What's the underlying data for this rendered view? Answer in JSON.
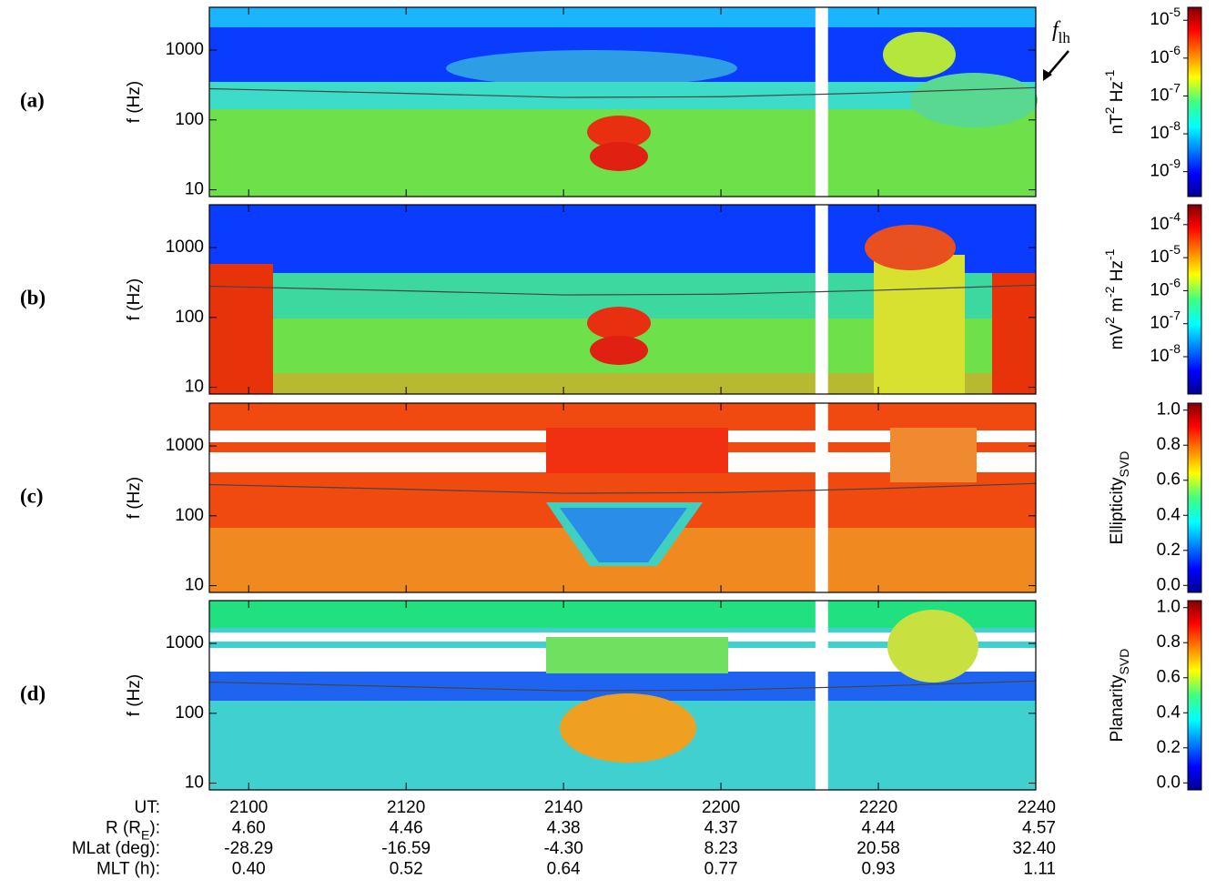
{
  "chart_data": [
    {
      "type": "spectrogram",
      "panel_label": "(a)",
      "y_label": "f (Hz)",
      "log_y": true,
      "ylim": [
        8,
        4100
      ],
      "yticks": [
        10,
        100,
        1000
      ],
      "xlim": [
        1255,
        1360
      ],
      "xticks": [
        {
          "value": 1260,
          "label": "2100"
        },
        {
          "value": 1280,
          "label": "2120"
        },
        {
          "value": 1300,
          "label": "2140"
        },
        {
          "value": 1320,
          "label": "2200"
        },
        {
          "value": 1340,
          "label": "2220"
        },
        {
          "value": 1360,
          "label": "2240"
        }
      ],
      "colormap": "jet",
      "log_c": true,
      "clim": [
        2.2e-10,
        2.2e-05
      ],
      "cticks": [
        {
          "value": 1e-05,
          "label": "10",
          "sup": "-5"
        },
        {
          "value": 1e-06,
          "label": "10",
          "sup": "-6"
        },
        {
          "value": 1e-07,
          "label": "10",
          "sup": "-7"
        },
        {
          "value": 1e-08,
          "label": "10",
          "sup": "-8"
        },
        {
          "value": 1e-09,
          "label": "10",
          "sup": "-9"
        }
      ],
      "colorbar_label": [
        {
          "text": "nT"
        },
        {
          "text": "2",
          "sup": true
        },
        {
          "text": " Hz"
        },
        {
          "text": "-1",
          "sup": true
        }
      ],
      "data_gap": [
        1332,
        1333.6
      ],
      "annotation": [
        {
          "text": "f",
          "italic": true
        },
        {
          "text": "lh",
          "sub": true
        }
      ]
    },
    {
      "type": "spectrogram",
      "panel_label": "(b)",
      "y_label": "f (Hz)",
      "log_y": true,
      "ylim": [
        8,
        4100
      ],
      "yticks": [
        10,
        100,
        1000
      ],
      "xlim": [
        1255,
        1360
      ],
      "xticks": [
        {
          "value": 1260,
          "label": "2100"
        },
        {
          "value": 1280,
          "label": "2120"
        },
        {
          "value": 1300,
          "label": "2140"
        },
        {
          "value": 1320,
          "label": "2200"
        },
        {
          "value": 1340,
          "label": "2220"
        },
        {
          "value": 1360,
          "label": "2240"
        }
      ],
      "colormap": "jet",
      "log_c": true,
      "clim": [
        7.4e-10,
        0.0004
      ],
      "cticks": [
        {
          "value": 0.0001,
          "label": "10",
          "sup": "-4"
        },
        {
          "value": 1e-05,
          "label": "10",
          "sup": "-5"
        },
        {
          "value": 1e-06,
          "label": "10",
          "sup": "-6"
        },
        {
          "value": 1e-07,
          "label": "10",
          "sup": "-7"
        },
        {
          "value": 1e-08,
          "label": "10",
          "sup": "-8"
        }
      ],
      "colorbar_label": [
        {
          "text": "mV"
        },
        {
          "text": "2",
          "sup": true
        },
        {
          "text": " m"
        },
        {
          "text": "-2",
          "sup": true
        },
        {
          "text": " Hz"
        },
        {
          "text": "-1",
          "sup": true
        }
      ],
      "data_gap": [
        1332,
        1333.6
      ]
    },
    {
      "type": "spectrogram",
      "panel_label": "(c)",
      "y_label": "f (Hz)",
      "log_y": true,
      "ylim": [
        8,
        4100
      ],
      "yticks": [
        10,
        100,
        1000
      ],
      "xlim": [
        1255,
        1360
      ],
      "xticks": [
        {
          "value": 1260,
          "label": "2100"
        },
        {
          "value": 1280,
          "label": "2120"
        },
        {
          "value": 1300,
          "label": "2140"
        },
        {
          "value": 1320,
          "label": "2200"
        },
        {
          "value": 1340,
          "label": "2220"
        },
        {
          "value": 1360,
          "label": "2240"
        }
      ],
      "colormap": "jet",
      "log_c": false,
      "clim": [
        -0.04,
        1.04
      ],
      "cticks": [
        {
          "value": 0,
          "label": "0.0"
        },
        {
          "value": 0.2,
          "label": "0.2"
        },
        {
          "value": 0.4,
          "label": "0.4"
        },
        {
          "value": 0.6,
          "label": "0.6"
        },
        {
          "value": 0.8,
          "label": "0.8"
        },
        {
          "value": 1,
          "label": "1.0"
        }
      ],
      "colorbar_label": [
        {
          "text": "Ellipticity"
        },
        {
          "text": "SVD",
          "sub": true
        }
      ],
      "data_gap": [
        1332,
        1333.6
      ]
    },
    {
      "type": "spectrogram",
      "panel_label": "(d)",
      "y_label": "f (Hz)",
      "log_y": true,
      "ylim": [
        8,
        4100
      ],
      "yticks": [
        10,
        100,
        1000
      ],
      "xlim": [
        1255,
        1360
      ],
      "xticks": [
        {
          "value": 1260,
          "label": "2100"
        },
        {
          "value": 1280,
          "label": "2120"
        },
        {
          "value": 1300,
          "label": "2140"
        },
        {
          "value": 1320,
          "label": "2200"
        },
        {
          "value": 1340,
          "label": "2220"
        },
        {
          "value": 1360,
          "label": "2240"
        }
      ],
      "colormap": "jet",
      "log_c": false,
      "clim": [
        -0.04,
        1.04
      ],
      "cticks": [
        {
          "value": 0,
          "label": "0.0"
        },
        {
          "value": 0.2,
          "label": "0.2"
        },
        {
          "value": 0.4,
          "label": "0.4"
        },
        {
          "value": 0.6,
          "label": "0.6"
        },
        {
          "value": 0.8,
          "label": "0.8"
        },
        {
          "value": 1,
          "label": "1.0"
        }
      ],
      "colorbar_label": [
        {
          "text": "Planarity"
        },
        {
          "text": "SVD",
          "sub": true
        }
      ],
      "data_gap": [
        1332,
        1333.6
      ]
    }
  ],
  "f_lh_curve": {
    "x": [
      1255,
      1280,
      1300,
      1320,
      1340,
      1360
    ],
    "values": [
      280,
      240,
      210,
      215,
      245,
      290
    ]
  },
  "ephemeris": {
    "rows": [
      {
        "label": [
          {
            "text": "UT:"
          }
        ]
      },
      {
        "label": [
          {
            "text": "R (R"
          },
          {
            "text": "E",
            "sub": true
          },
          {
            "text": "):"
          }
        ],
        "values": [
          "4.60",
          "4.46",
          "4.38",
          "4.37",
          "4.44",
          "4.57"
        ]
      },
      {
        "label": [
          {
            "text": "MLat (deg):"
          }
        ],
        "values": [
          "-28.29",
          "-16.59",
          "-4.30",
          "8.23",
          "20.58",
          "32.40"
        ]
      },
      {
        "label": [
          {
            "text": "MLT (h):"
          }
        ],
        "values": [
          "0.40",
          "0.52",
          "0.64",
          "0.77",
          "0.93",
          "1.11"
        ]
      }
    ]
  }
}
